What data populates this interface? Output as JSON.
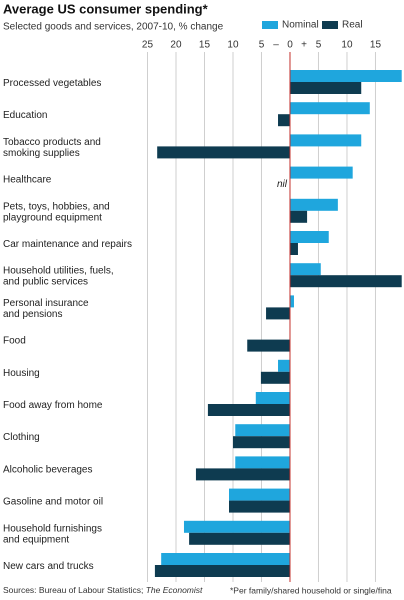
{
  "chart_data": {
    "type": "barh",
    "title": "Average US consumer spending*",
    "subtitle": "Selected goods and services, 2007-10, % change",
    "categories": [
      [
        "Processed vegetables"
      ],
      [
        "Education"
      ],
      [
        "Tobacco products and",
        "smoking supplies"
      ],
      [
        "Healthcare"
      ],
      [
        "Pets, toys, hobbies, and",
        "playground equipment"
      ],
      [
        "Car maintenance and repairs"
      ],
      [
        "Household utilities, fuels,",
        "and public services"
      ],
      [
        "Personal insurance",
        "and pensions"
      ],
      [
        "Food"
      ],
      [
        "Housing"
      ],
      [
        "Food away from home"
      ],
      [
        "Clothing"
      ],
      [
        "Alcoholic beverages"
      ],
      [
        "Gasoline and motor oil"
      ],
      [
        "Household furnishings",
        "and equipment"
      ],
      [
        "New cars and trucks"
      ]
    ],
    "series": [
      {
        "name": "Nominal",
        "color": "#1fa6dd",
        "values": [
          19.6,
          14,
          12.5,
          11,
          8.4,
          6.8,
          5.4,
          0.7,
          0,
          -2.1,
          -6,
          -9.6,
          -9.6,
          -10.7,
          -18.6,
          -22.6
        ]
      },
      {
        "name": "Real",
        "color": "#0e3b50",
        "values": [
          12.5,
          -2.1,
          -23.3,
          null,
          3,
          1.4,
          19.6,
          -4.2,
          -7.5,
          -5.1,
          -14.4,
          -10,
          -16.5,
          -10.7,
          -17.7,
          -23.7
        ],
        "value_labels": [
          null,
          null,
          null,
          "nil",
          null,
          null,
          null,
          null,
          null,
          null,
          null,
          null,
          null,
          null,
          null,
          null
        ]
      }
    ],
    "xlim": [
      -26,
      19.6
    ],
    "xticks": [
      {
        "value": -25,
        "label": "25"
      },
      {
        "value": -20,
        "label": "20"
      },
      {
        "value": -15,
        "label": "15"
      },
      {
        "value": -10,
        "label": "10"
      },
      {
        "value": -5,
        "label": "5"
      },
      0,
      5,
      10,
      15
    ],
    "x_sign_labels": [
      "–",
      "+"
    ],
    "grid": true,
    "source_prefix": "Sources: Bureau of Labour Statistics; ",
    "source_italic": "The Economist",
    "footnote": "*Per family/shared household or single/fina"
  }
}
